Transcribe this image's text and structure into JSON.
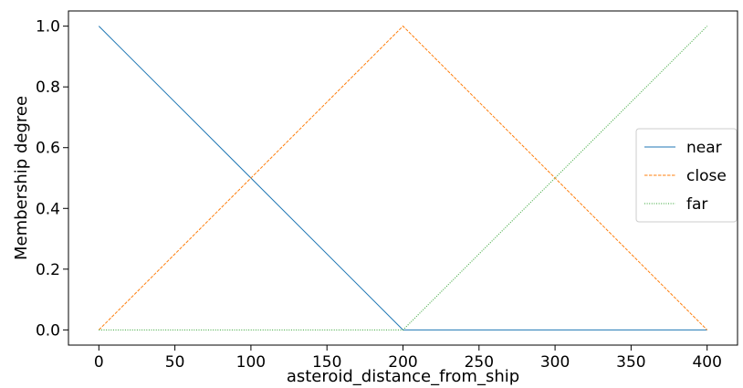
{
  "chart_data": {
    "type": "line",
    "title": "",
    "xlabel": "asteroid_distance_from_ship",
    "ylabel": "Membership degree",
    "xlim": [
      -20,
      420
    ],
    "ylim": [
      -0.05,
      1.05
    ],
    "x_ticks": [
      0,
      50,
      100,
      150,
      200,
      250,
      300,
      350,
      400
    ],
    "x_tick_labels": [
      "0",
      "50",
      "100",
      "150",
      "200",
      "250",
      "300",
      "350",
      "400"
    ],
    "y_ticks": [
      0.0,
      0.2,
      0.4,
      0.6,
      0.8,
      1.0
    ],
    "y_tick_labels": [
      "0.0",
      "0.2",
      "0.4",
      "0.6",
      "0.8",
      "1.0"
    ],
    "grid": false,
    "legend_position": "center-right",
    "series": [
      {
        "name": "near",
        "color": "#1f77b4",
        "line_style": "solid",
        "x": [
          0,
          200,
          400
        ],
        "y": [
          1.0,
          0.0,
          0.0
        ]
      },
      {
        "name": "close",
        "color": "#ff7f0e",
        "line_style": "dashed",
        "x": [
          0,
          200,
          400
        ],
        "y": [
          0.0,
          1.0,
          0.0
        ]
      },
      {
        "name": "far",
        "color": "#2ca02c",
        "line_style": "dotted",
        "x": [
          0,
          200,
          400
        ],
        "y": [
          0.0,
          0.0,
          1.0
        ]
      }
    ]
  }
}
